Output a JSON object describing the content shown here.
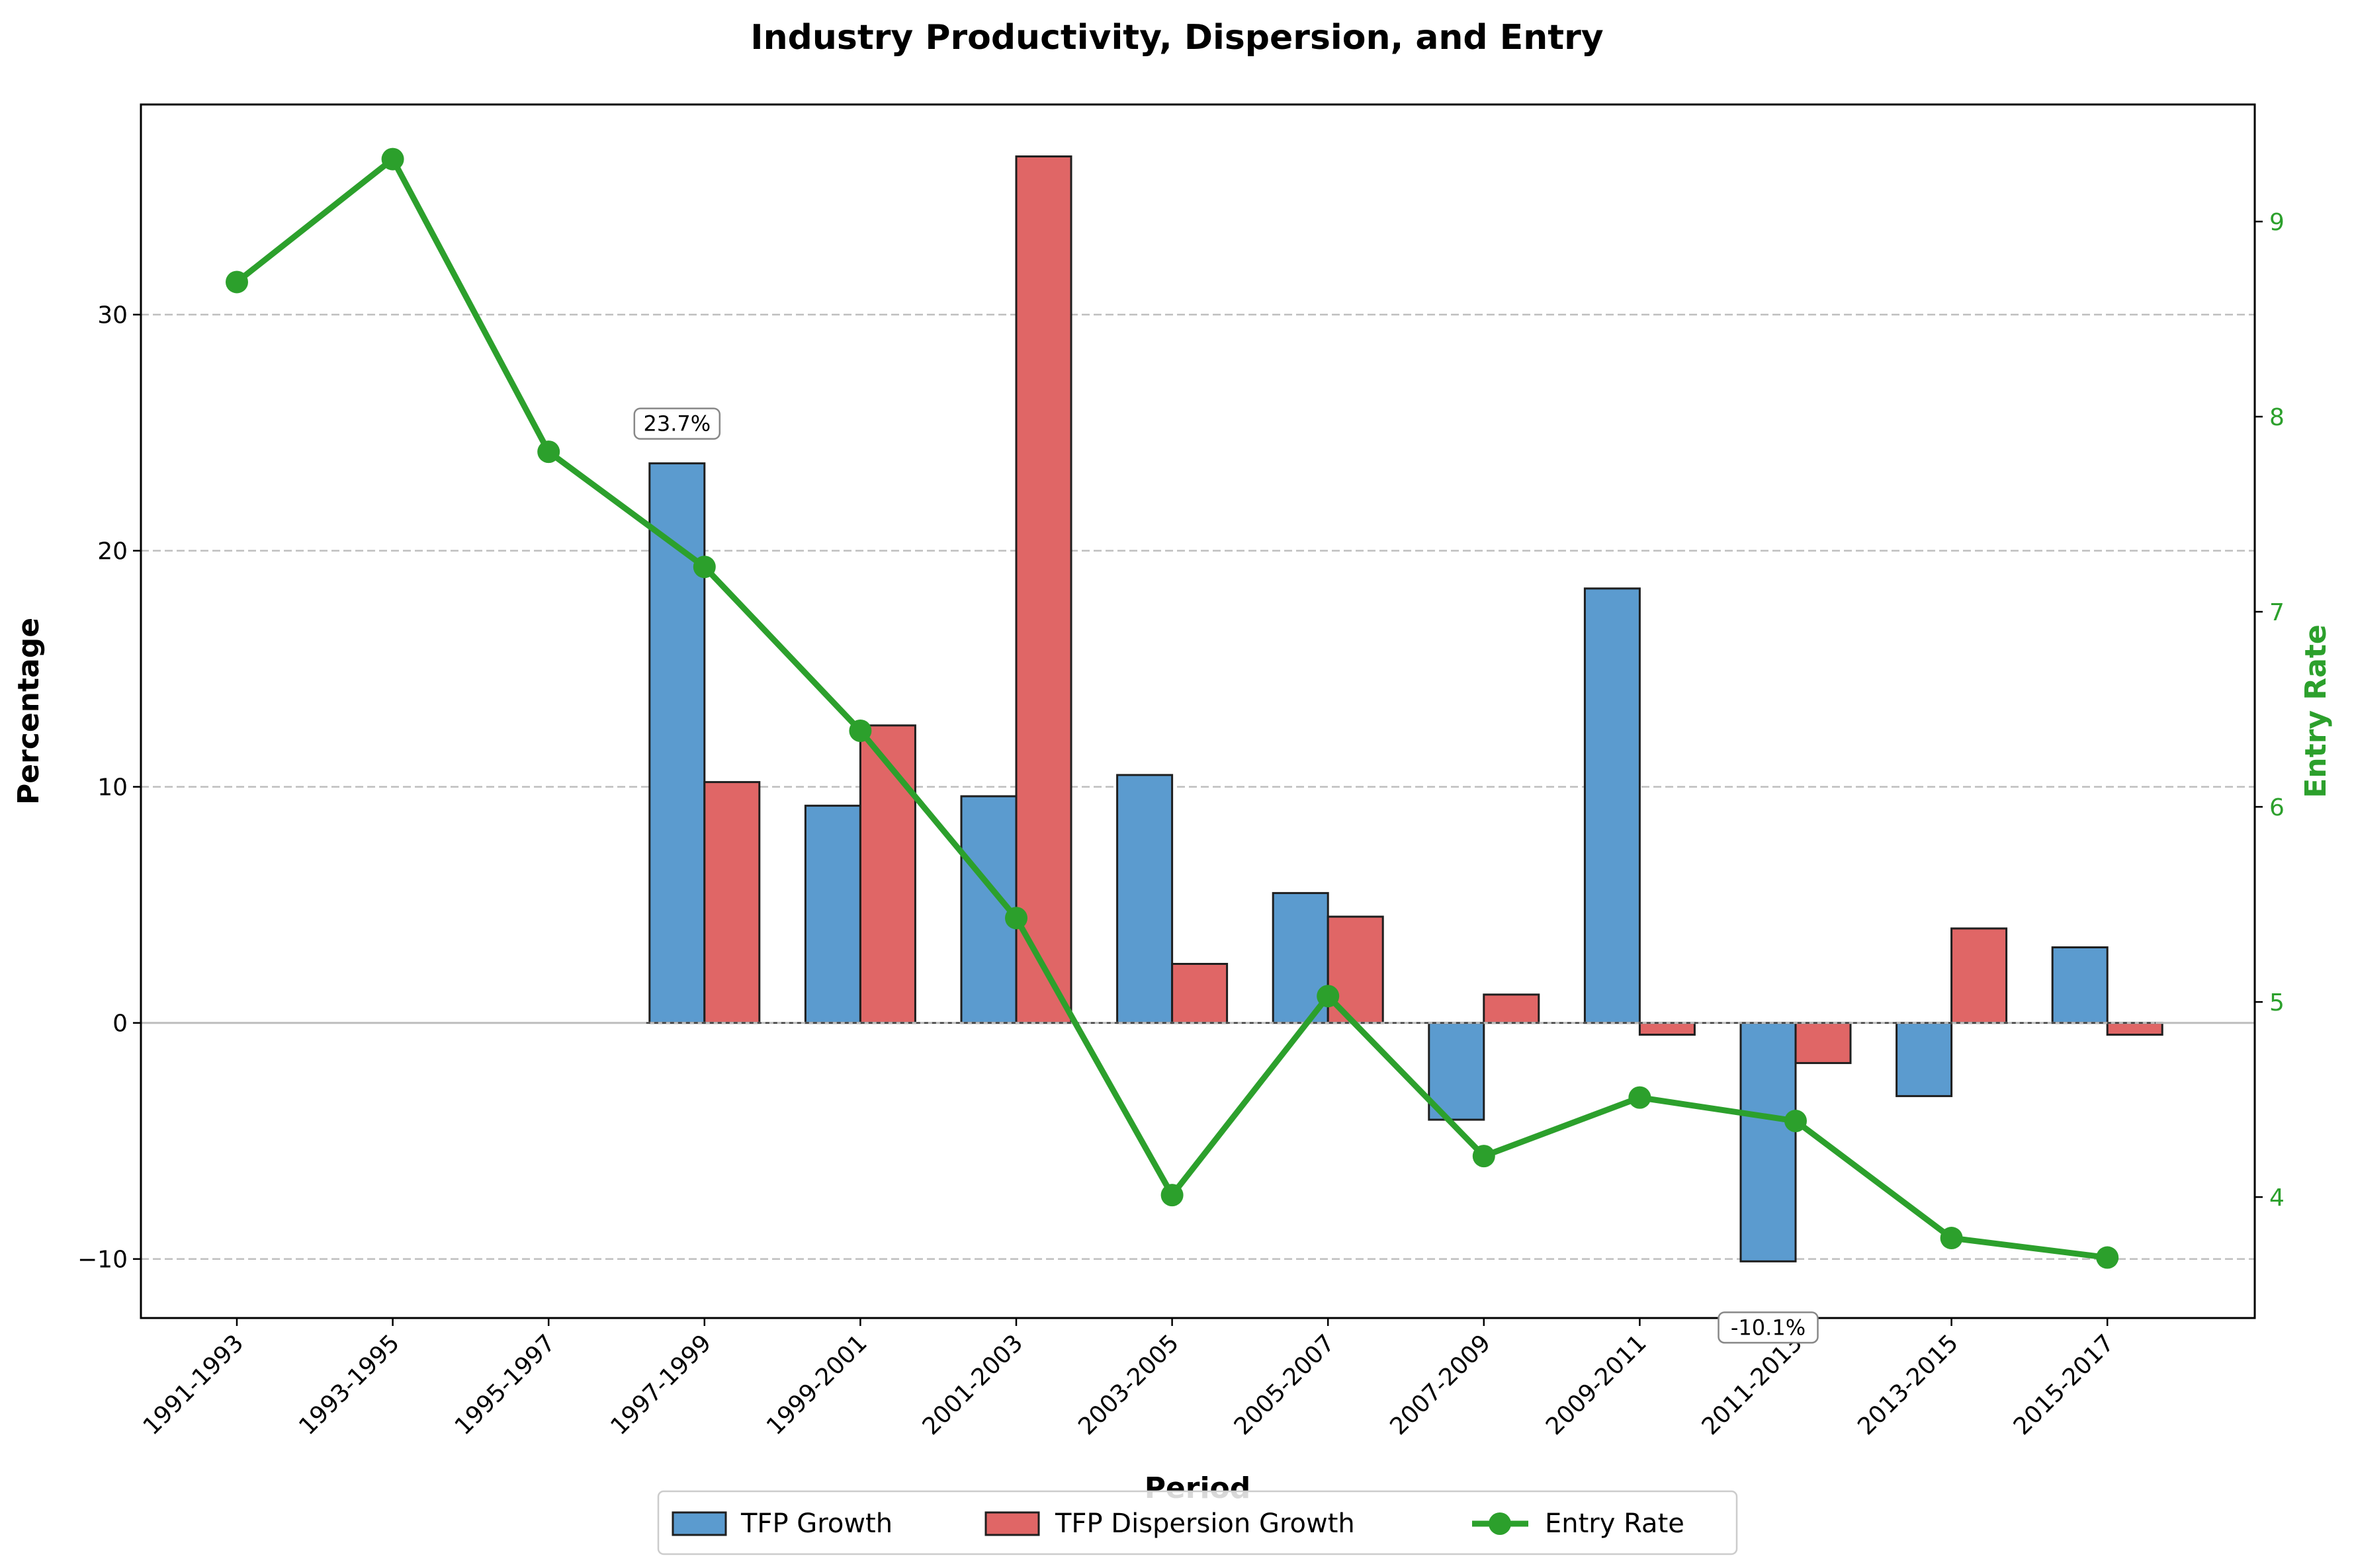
{
  "chart_data": {
    "type": "bar",
    "title": "Industry Productivity, Dispersion, and Entry",
    "xlabel": "Period",
    "ylabel": "Percentage",
    "y2label": "Entry Rate",
    "categories": [
      "1991-1993",
      "1993-1995",
      "1995-1997",
      "1997-1999",
      "1999-2001",
      "2001-2003",
      "2003-2005",
      "2005-2007",
      "2007-2009",
      "2009-2011",
      "2011-2013",
      "2013-2015",
      "2015-2017"
    ],
    "ylim": [
      -12.5,
      38.9
    ],
    "y2lim": [
      3.38,
      9.6
    ],
    "yticks": [
      -10,
      0,
      10,
      20,
      30
    ],
    "y2ticks": [
      4,
      5,
      6,
      7,
      8,
      9
    ],
    "grid": true,
    "legend_position": "bottom-center",
    "series": [
      {
        "name": "TFP Growth",
        "kind": "bar",
        "color": "#5b9bcf",
        "values": [
          null,
          null,
          null,
          23.7,
          9.2,
          9.6,
          10.5,
          5.5,
          -4.1,
          18.4,
          -10.1,
          -3.1,
          3.2
        ]
      },
      {
        "name": "TFP Dispersion Growth",
        "kind": "bar",
        "color": "#e06666",
        "values": [
          null,
          null,
          null,
          10.2,
          12.6,
          36.7,
          2.5,
          4.5,
          1.2,
          -0.5,
          -1.7,
          4.0,
          -0.5
        ]
      },
      {
        "name": "Entry Rate",
        "kind": "line",
        "axis": "right",
        "color": "#2ca02c",
        "values": [
          8.69,
          9.32,
          7.82,
          7.23,
          6.39,
          5.43,
          4.01,
          5.03,
          4.21,
          4.51,
          4.39,
          3.79,
          3.69
        ]
      }
    ],
    "annotations": [
      {
        "text": "23.7%",
        "category": "1997-1999",
        "series": "TFP Growth"
      },
      {
        "text": "-10.1%",
        "category": "2011-2013",
        "series": "TFP Growth"
      }
    ]
  }
}
